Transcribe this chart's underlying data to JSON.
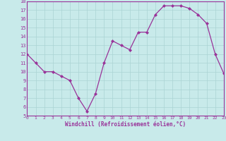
{
  "x": [
    0,
    1,
    2,
    3,
    4,
    5,
    6,
    7,
    8,
    9,
    10,
    11,
    12,
    13,
    14,
    15,
    16,
    17,
    18,
    19,
    20,
    21,
    22,
    23
  ],
  "y": [
    12,
    11,
    10,
    10,
    9.5,
    9,
    7,
    5.5,
    7.5,
    11,
    13.5,
    13,
    12.5,
    14.5,
    14.5,
    16.5,
    17.5,
    17.5,
    17.5,
    17.2,
    16.5,
    15.5,
    12,
    9.8
  ],
  "xlabel": "Windchill (Refroidissement éolien,°C)",
  "xlim": [
    0,
    23
  ],
  "ylim": [
    5,
    18
  ],
  "yticks": [
    5,
    6,
    7,
    8,
    9,
    10,
    11,
    12,
    13,
    14,
    15,
    16,
    17,
    18
  ],
  "xticks": [
    0,
    1,
    2,
    3,
    4,
    5,
    6,
    7,
    8,
    9,
    10,
    11,
    12,
    13,
    14,
    15,
    16,
    17,
    18,
    19,
    20,
    21,
    22,
    23
  ],
  "line_color": "#993399",
  "marker_color": "#993399",
  "bg_color": "#c8eaea",
  "grid_color": "#aad4d4",
  "spine_color": "#993399",
  "tick_label_color": "#993399",
  "xlabel_color": "#993399"
}
